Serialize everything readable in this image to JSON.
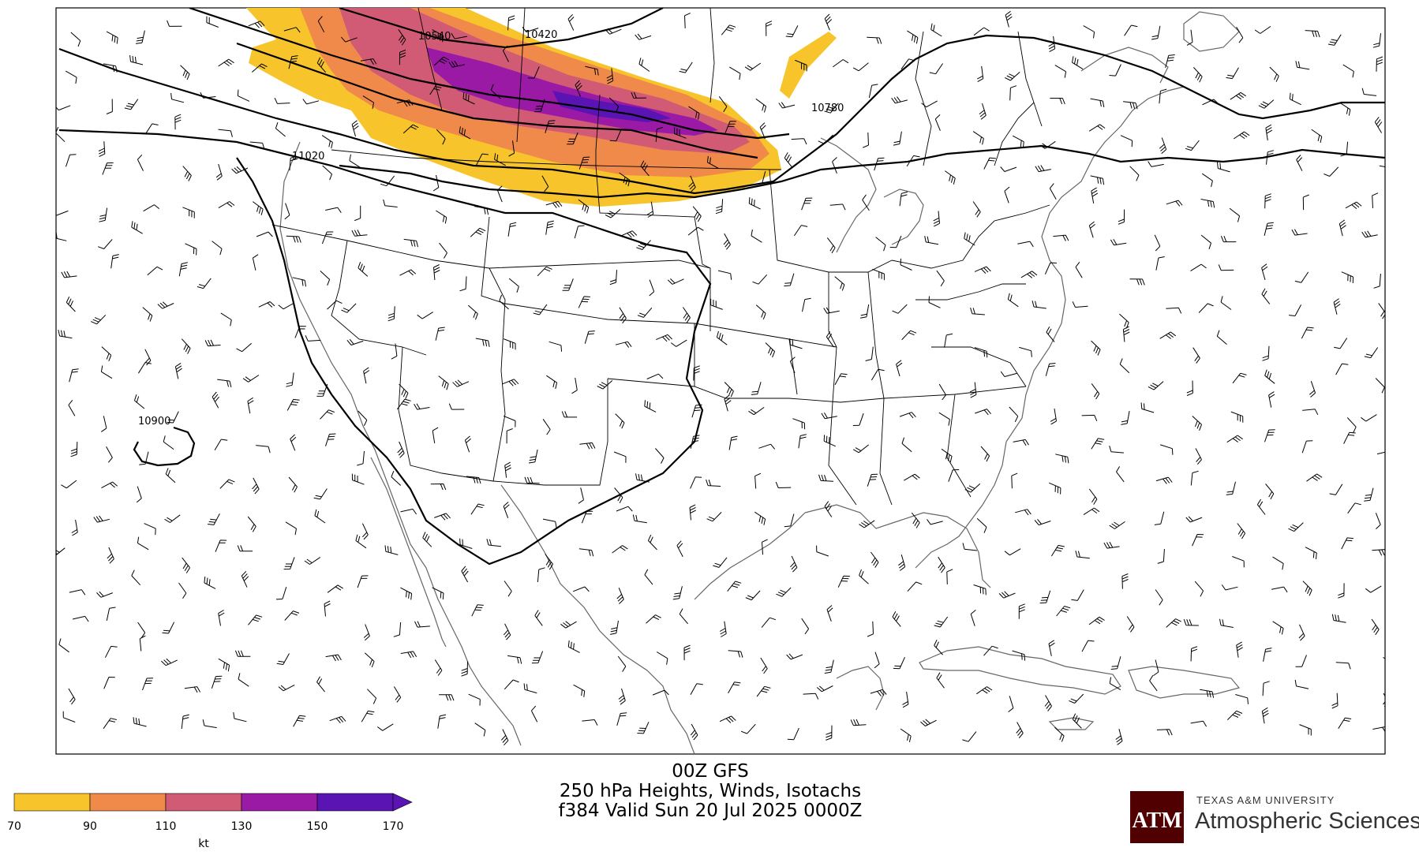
{
  "title": {
    "line1": "00Z GFS",
    "line2": "250 hPa Heights, Winds, Isotachs",
    "line3": "f384 Valid Sun 20 Jul 2025 0000Z"
  },
  "colorbar": {
    "ticks": [
      "70",
      "90",
      "110",
      "130",
      "150",
      "170"
    ],
    "unit": "kt",
    "colors": [
      "#f7c52b",
      "#f08a4b",
      "#d15b75",
      "#9a1aa6",
      "#5a14b4"
    ]
  },
  "contour_labels": [
    "10540",
    "10420",
    "10780",
    "11020",
    "10900"
  ],
  "logo": {
    "university": "TEXAS A&M UNIVERSITY",
    "department": "Atmospheric Sciences",
    "mark": "ATM"
  }
}
